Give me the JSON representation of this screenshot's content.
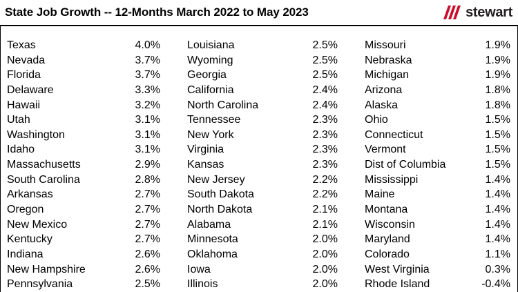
{
  "header": {
    "title": "State Job Growth -- 12-Months March 2022 to May 2023",
    "logo_text": "stewart"
  },
  "chart_data": {
    "type": "table",
    "title": "State Job Growth -- 12-Months March 2022 to May 2023",
    "columns": [
      [
        {
          "state": "Texas",
          "value": "4.0%"
        },
        {
          "state": "Nevada",
          "value": "3.7%"
        },
        {
          "state": "Florida",
          "value": "3.7%"
        },
        {
          "state": "Delaware",
          "value": "3.3%"
        },
        {
          "state": "Hawaii",
          "value": "3.2%"
        },
        {
          "state": "Utah",
          "value": "3.1%"
        },
        {
          "state": "Washington",
          "value": "3.1%"
        },
        {
          "state": "Idaho",
          "value": "3.1%"
        },
        {
          "state": "Massachusetts",
          "value": "2.9%"
        },
        {
          "state": "South Carolina",
          "value": "2.8%"
        },
        {
          "state": "Arkansas",
          "value": "2.7%"
        },
        {
          "state": "Oregon",
          "value": "2.7%"
        },
        {
          "state": "New Mexico",
          "value": "2.7%"
        },
        {
          "state": "Kentucky",
          "value": "2.7%"
        },
        {
          "state": "Indiana",
          "value": "2.6%"
        },
        {
          "state": "New Hampshire",
          "value": "2.6%"
        },
        {
          "state": "Pennsylvania",
          "value": "2.5%"
        }
      ],
      [
        {
          "state": "Louisiana",
          "value": "2.5%"
        },
        {
          "state": "Wyoming",
          "value": "2.5%"
        },
        {
          "state": "Georgia",
          "value": "2.5%"
        },
        {
          "state": "California",
          "value": "2.4%"
        },
        {
          "state": "North Carolina",
          "value": "2.4%"
        },
        {
          "state": "Tennessee",
          "value": "2.3%"
        },
        {
          "state": "New York",
          "value": "2.3%"
        },
        {
          "state": "Virginia",
          "value": "2.3%"
        },
        {
          "state": "Kansas",
          "value": "2.3%"
        },
        {
          "state": "New Jersey",
          "value": "2.2%"
        },
        {
          "state": "South Dakota",
          "value": "2.2%"
        },
        {
          "state": "North Dakota",
          "value": "2.1%"
        },
        {
          "state": "Alabama",
          "value": "2.1%"
        },
        {
          "state": "Minnesota",
          "value": "2.0%"
        },
        {
          "state": "Oklahoma",
          "value": "2.0%"
        },
        {
          "state": "Iowa",
          "value": "2.0%"
        },
        {
          "state": "Illinois",
          "value": "2.0%"
        }
      ],
      [
        {
          "state": "Missouri",
          "value": "1.9%"
        },
        {
          "state": "Nebraska",
          "value": "1.9%"
        },
        {
          "state": "Michigan",
          "value": "1.9%"
        },
        {
          "state": "Arizona",
          "value": "1.8%"
        },
        {
          "state": "Alaska",
          "value": "1.8%"
        },
        {
          "state": "Ohio",
          "value": "1.5%"
        },
        {
          "state": "Connecticut",
          "value": "1.5%"
        },
        {
          "state": "Vermont",
          "value": "1.5%"
        },
        {
          "state": "Dist of Columbia",
          "value": "1.5%"
        },
        {
          "state": "Mississippi",
          "value": "1.4%"
        },
        {
          "state": "Maine",
          "value": "1.4%"
        },
        {
          "state": "Montana",
          "value": "1.4%"
        },
        {
          "state": "Wisconsin",
          "value": "1.4%"
        },
        {
          "state": "Maryland",
          "value": "1.4%"
        },
        {
          "state": "Colorado",
          "value": "1.1%"
        },
        {
          "state": "West Virginia",
          "value": "0.3%"
        },
        {
          "state": "Rhode Island",
          "value": "-0.4%"
        }
      ]
    ]
  },
  "colors": {
    "logo_mark": "#c8102e",
    "text": "#000000",
    "rule": "#000000"
  },
  "icons": {
    "logo": "stewart-logo-icon"
  }
}
